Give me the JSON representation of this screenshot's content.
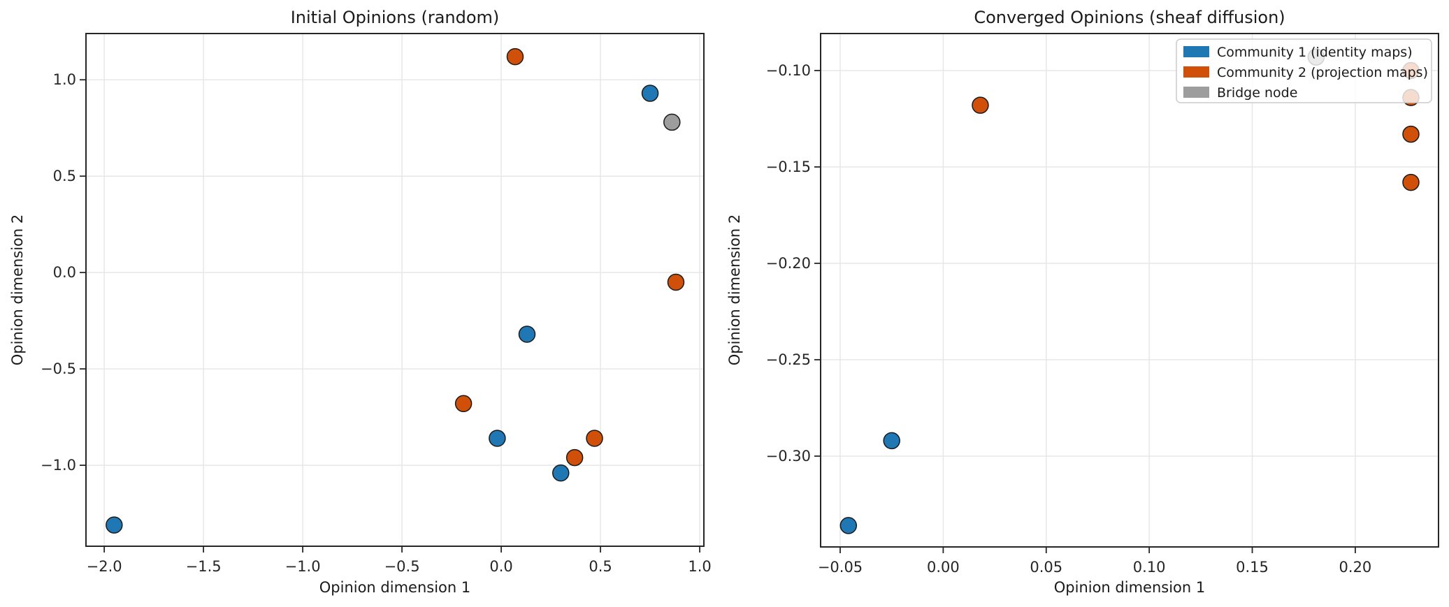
{
  "figure": {
    "background": "#ffffff",
    "spine_color": "#262626",
    "grid_color": "#e7e7e7",
    "marker_edge_color": "#1a1a1a",
    "legend_face_color": "rgba(255,255,255,0.8)",
    "legend_edge_color": "#cccccc"
  },
  "chart_data": [
    {
      "type": "scatter",
      "title": "Initial Opinions (random)",
      "xlabel": "Opinion dimension 1",
      "ylabel": "Opinion dimension 2",
      "xlim": [
        -2.092,
        1.021
      ],
      "ylim": [
        -1.42,
        1.24
      ],
      "grid": true,
      "xticks": [
        {
          "v": -2.0,
          "label": "−2.0"
        },
        {
          "v": -1.5,
          "label": "−1.5"
        },
        {
          "v": -1.0,
          "label": "−1.0"
        },
        {
          "v": -0.5,
          "label": "−0.5"
        },
        {
          "v": 0.0,
          "label": "0.0"
        },
        {
          "v": 0.5,
          "label": "0.5"
        },
        {
          "v": 1.0,
          "label": "1.0"
        }
      ],
      "yticks": [
        {
          "v": 1.0,
          "label": "1.0"
        },
        {
          "v": 0.5,
          "label": "0.5"
        },
        {
          "v": 0.0,
          "label": "0.0"
        },
        {
          "v": -0.5,
          "label": "−0.5"
        },
        {
          "v": -1.0,
          "label": "−1.0"
        }
      ],
      "series": [
        {
          "name": "Community 1 (identity maps)",
          "color": "#1f77b4",
          "points": [
            [
              0.75,
              0.93
            ],
            [
              0.13,
              -0.32
            ],
            [
              -0.02,
              -0.86
            ],
            [
              0.3,
              -1.04
            ],
            [
              -1.95,
              -1.31
            ]
          ]
        },
        {
          "name": "Community 2 (projection maps)",
          "color": "#d0500a",
          "points": [
            [
              0.07,
              1.12
            ],
            [
              0.88,
              -0.05
            ],
            [
              -0.19,
              -0.68
            ],
            [
              0.47,
              -0.86
            ],
            [
              0.37,
              -0.96
            ]
          ]
        },
        {
          "name": "Bridge node",
          "color": "#9d9d9d",
          "points": [
            [
              0.86,
              0.78
            ]
          ]
        }
      ],
      "legend": {
        "visible": false,
        "entries": []
      }
    },
    {
      "type": "scatter",
      "title": "Converged Opinions (sheaf diffusion)",
      "xlabel": "Opinion dimension 1",
      "ylabel": "Opinion dimension 2",
      "xlim": [
        -0.0595,
        0.2404
      ],
      "ylim": [
        -0.3471,
        -0.0808
      ],
      "grid": true,
      "xticks": [
        {
          "v": -0.05,
          "label": "−0.05"
        },
        {
          "v": 0.0,
          "label": "0.00"
        },
        {
          "v": 0.05,
          "label": "0.05"
        },
        {
          "v": 0.1,
          "label": "0.10"
        },
        {
          "v": 0.15,
          "label": "0.15"
        },
        {
          "v": 0.2,
          "label": "0.20"
        }
      ],
      "yticks": [
        {
          "v": -0.1,
          "label": "−0.10"
        },
        {
          "v": -0.15,
          "label": "−0.15"
        },
        {
          "v": -0.2,
          "label": "−0.20"
        },
        {
          "v": -0.25,
          "label": "−0.25"
        },
        {
          "v": -0.3,
          "label": "−0.30"
        }
      ],
      "series": [
        {
          "name": "Community 1 (identity maps)",
          "color": "#1f77b4",
          "points": [
            [
              -0.025,
              -0.292
            ],
            [
              -0.046,
              -0.336
            ]
          ]
        },
        {
          "name": "Community 2 (projection maps)",
          "color": "#d0500a",
          "points": [
            [
              0.018,
              -0.118
            ],
            [
              0.227,
              -0.1
            ],
            [
              0.227,
              -0.114
            ],
            [
              0.227,
              -0.133
            ],
            [
              0.227,
              -0.158
            ]
          ]
        },
        {
          "name": "Bridge node",
          "color": "#9d9d9d",
          "points": [
            [
              0.181,
              -0.093
            ]
          ]
        }
      ],
      "legend": {
        "visible": true,
        "position": "upper right",
        "entries": [
          {
            "label": "Community 1 (identity maps)",
            "color": "#1f77b4"
          },
          {
            "label": "Community 2 (projection maps)",
            "color": "#d0500a"
          },
          {
            "label": "Bridge node",
            "color": "#9d9d9d"
          }
        ]
      }
    }
  ]
}
